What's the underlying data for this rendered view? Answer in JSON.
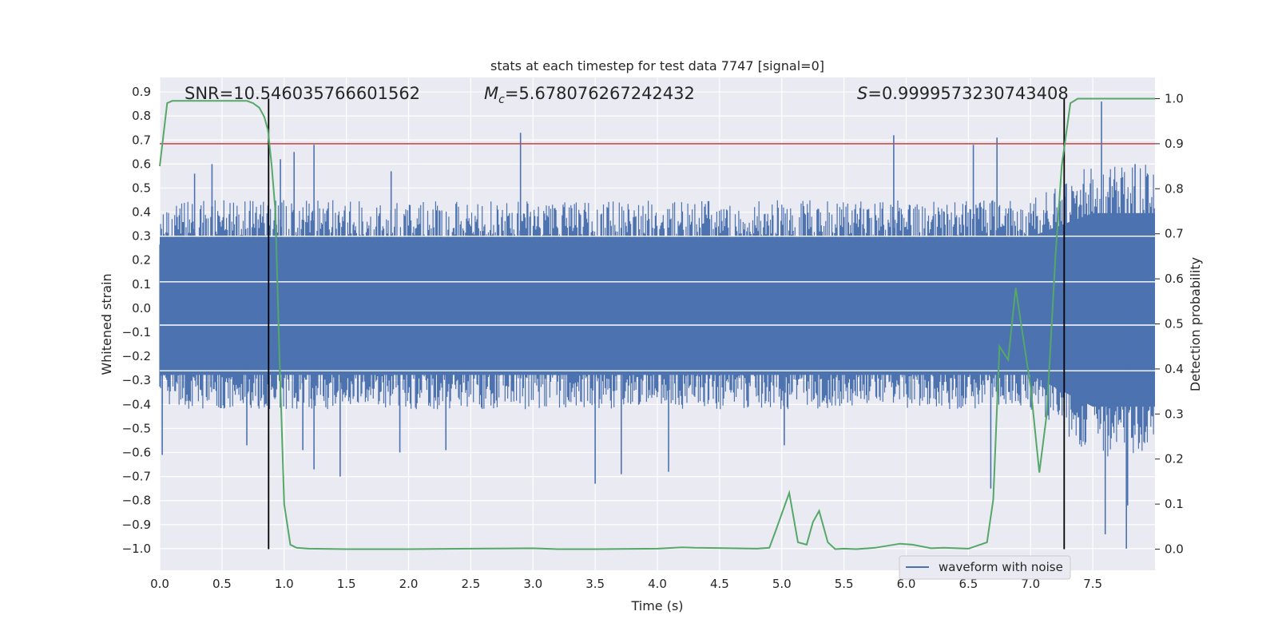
{
  "chart_data": {
    "type": "line",
    "title": "stats at each timestep for test data 7747 [signal=0]",
    "xlabel": "Time (s)",
    "ylabel": "Whitened strain",
    "y2label": "Detection probability",
    "xlim": [
      0.0,
      8.0
    ],
    "ylim": [
      -1.09,
      0.96
    ],
    "y2lim": [
      -0.047,
      1.047
    ],
    "xticks": [
      0.0,
      0.5,
      1.0,
      1.5,
      2.0,
      2.5,
      3.0,
      3.5,
      4.0,
      4.5,
      5.0,
      5.5,
      6.0,
      6.5,
      7.0,
      7.5
    ],
    "xtick_labels": [
      "0.0",
      "0.5",
      "1.0",
      "1.5",
      "2.0",
      "2.5",
      "3.0",
      "3.5",
      "4.0",
      "4.5",
      "5.0",
      "5.5",
      "6.0",
      "6.5",
      "7.0",
      "7.5"
    ],
    "yticks": [
      0.9,
      0.8,
      0.7,
      0.6,
      0.5,
      0.4,
      0.3,
      0.2,
      0.1,
      0.0,
      -0.1,
      -0.2,
      -0.3,
      -0.4,
      -0.5,
      -0.6,
      -0.7,
      -0.8,
      -0.9,
      -1.0
    ],
    "ytick_labels": [
      "0.9",
      "0.8",
      "0.7",
      "0.6",
      "0.5",
      "0.4",
      "0.3",
      "0.2",
      "0.1",
      "0.0",
      "−0.1",
      "−0.2",
      "−0.3",
      "−0.4",
      "−0.5",
      "−0.6",
      "−0.7",
      "−0.8",
      "−0.9",
      "−1.0"
    ],
    "y2ticks": [
      1.0,
      0.9,
      0.8,
      0.7,
      0.6,
      0.5,
      0.4,
      0.3,
      0.2,
      0.1,
      0.0
    ],
    "y2tick_labels": [
      "1.0",
      "0.9",
      "0.8",
      "0.7",
      "0.6",
      "0.5",
      "0.4",
      "0.3",
      "0.2",
      "0.1",
      "0.0"
    ],
    "grid": true,
    "legend_position": "bottom-right",
    "annotations": {
      "snr": "SNR=10.546035766601562",
      "mc_symbol": "M",
      "mc_sub": "c",
      "mc_value": "=5.678076267242432",
      "s_symbol": "S",
      "s_value": "=0.9999573230743408"
    },
    "series": [
      {
        "name": "waveform with noise",
        "color": "#4c72b0",
        "axis": "left",
        "envelope": {
          "x": [
            0.0,
            0.5,
            1.0,
            1.5,
            2.0,
            2.5,
            3.0,
            3.5,
            4.0,
            4.5,
            5.0,
            5.5,
            6.0,
            6.5,
            7.0,
            7.5,
            8.0
          ],
          "upper": [
            0.45,
            0.45,
            0.45,
            0.45,
            0.45,
            0.45,
            0.45,
            0.45,
            0.45,
            0.45,
            0.45,
            0.45,
            0.45,
            0.45,
            0.45,
            0.6,
            0.6
          ],
          "lower": [
            -0.42,
            -0.42,
            -0.42,
            -0.42,
            -0.42,
            -0.42,
            -0.42,
            -0.42,
            -0.42,
            -0.42,
            -0.42,
            -0.42,
            -0.42,
            -0.42,
            -0.42,
            -0.62,
            -0.62
          ]
        },
        "spikes": [
          [
            0.02,
            -0.61
          ],
          [
            0.28,
            0.56
          ],
          [
            0.42,
            0.6
          ],
          [
            0.7,
            -0.57
          ],
          [
            0.97,
            0.62
          ],
          [
            1.08,
            0.65
          ],
          [
            1.15,
            -0.59
          ],
          [
            1.24,
            0.68
          ],
          [
            1.24,
            -0.67
          ],
          [
            1.45,
            -0.7
          ],
          [
            1.86,
            0.57
          ],
          [
            1.93,
            -0.6
          ],
          [
            2.3,
            -0.59
          ],
          [
            2.9,
            0.73
          ],
          [
            3.5,
            -0.73
          ],
          [
            3.71,
            -0.69
          ],
          [
            4.09,
            -0.68
          ],
          [
            5.02,
            -0.57
          ],
          [
            5.9,
            0.72
          ],
          [
            6.54,
            0.68
          ],
          [
            6.68,
            -0.75
          ],
          [
            6.73,
            0.71
          ],
          [
            7.57,
            0.86
          ],
          [
            7.6,
            -0.94
          ],
          [
            7.77,
            -1.0
          ],
          [
            7.78,
            -0.82
          ],
          [
            7.84,
            0.6
          ]
        ]
      },
      {
        "name": "detection probability",
        "color": "#55a868",
        "axis": "right",
        "x": [
          0.0,
          0.06,
          0.1,
          0.15,
          0.2,
          0.3,
          0.5,
          0.6,
          0.7,
          0.75,
          0.8,
          0.84,
          0.87,
          0.9,
          0.93,
          0.96,
          1.0,
          1.05,
          1.1,
          1.2,
          1.5,
          2.0,
          2.5,
          3.0,
          3.2,
          3.5,
          4.0,
          4.2,
          4.3,
          4.6,
          4.8,
          4.9,
          4.95,
          5.06,
          5.13,
          5.2,
          5.25,
          5.3,
          5.37,
          5.43,
          5.5,
          5.6,
          5.75,
          5.95,
          6.05,
          6.2,
          6.3,
          6.5,
          6.65,
          6.7,
          6.75,
          6.82,
          6.88,
          6.94,
          7.0,
          7.07,
          7.13,
          7.2,
          7.25,
          7.32,
          7.38,
          7.45,
          7.6,
          8.0
        ],
        "y": [
          0.85,
          0.99,
          0.995,
          0.995,
          0.995,
          0.995,
          0.995,
          0.995,
          0.995,
          0.99,
          0.98,
          0.96,
          0.93,
          0.85,
          0.75,
          0.45,
          0.1,
          0.01,
          0.003,
          0.001,
          0.0,
          0.0,
          0.001,
          0.002,
          0.0,
          0.0,
          0.001,
          0.004,
          0.003,
          0.002,
          0.001,
          0.003,
          0.04,
          0.125,
          0.015,
          0.01,
          0.06,
          0.085,
          0.015,
          0.0,
          0.001,
          0.0,
          0.003,
          0.012,
          0.01,
          0.002,
          0.003,
          0.001,
          0.015,
          0.11,
          0.45,
          0.42,
          0.58,
          0.47,
          0.36,
          0.17,
          0.3,
          0.65,
          0.85,
          0.99,
          1.0,
          1.0,
          1.0,
          1.0
        ]
      }
    ],
    "threshold_line": {
      "y2": 0.9,
      "color": "#c44e52"
    },
    "vertical_lines": [
      {
        "x": 0.875
      },
      {
        "x": 7.27
      }
    ],
    "horizontal_white_lines": [
      0.3,
      0.11,
      -0.07,
      -0.26
    ]
  }
}
